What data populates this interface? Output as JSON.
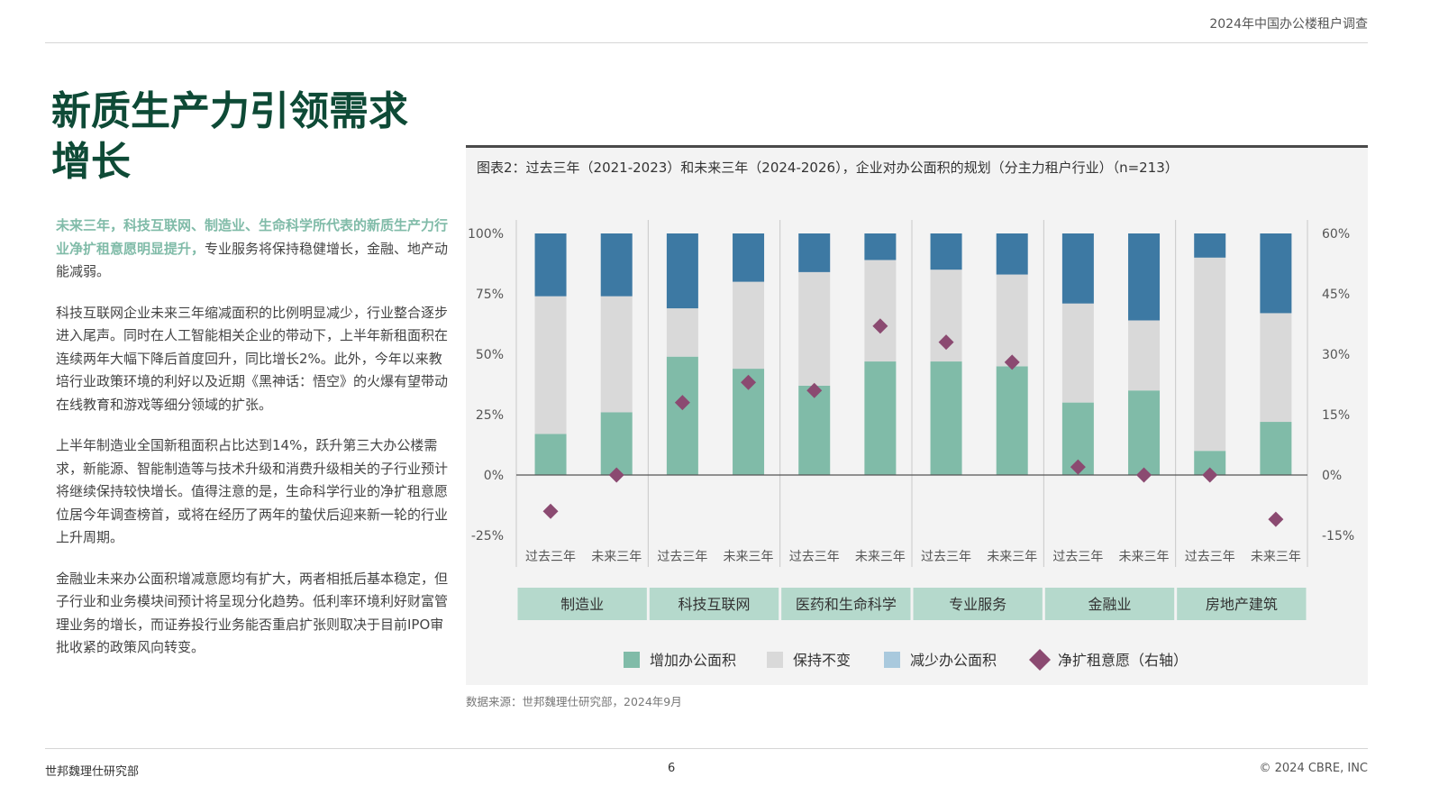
{
  "header": {
    "report_title": "2024年中国办公楼租户调查"
  },
  "page": {
    "title": "新质生产力引领需求增长",
    "page_number": "6"
  },
  "body": {
    "p1_lead": "未来三年，科技互联网、制造业、生命科学所代表的新质生产力行业净扩租意愿明显提升，",
    "p1_rest": "专业服务将保持稳健增长，金融、地产动能减弱。",
    "p2": "科技互联网企业未来三年缩减面积的比例明显减少，行业整合逐步进入尾声。同时在人工智能相关企业的带动下，上半年新租面积在连续两年大幅下降后首度回升，同比增长2%。此外，今年以来教培行业政策环境的利好以及近期《黑神话：悟空》的火爆有望带动在线教育和游戏等细分领域的扩张。",
    "p3": "上半年制造业全国新租面积占比达到14%，跃升第三大办公楼需求，新能源、智能制造等与技术升级和消费升级相关的子行业预计将继续保持较快增长。值得注意的是，生命科学行业的净扩租意愿位居今年调查榜首，或将在经历了两年的蛰伏后迎来新一轮的行业上升周期。",
    "p4": "金融业未来办公面积增减意愿均有扩大，两者相抵后基本稳定，但子行业和业务模块间预计将呈现分化趋势。低利率环境利好财富管理业务的增长，而证券投行业务能否重启扩张则取决于目前IPO审批收紧的政策风向转变。"
  },
  "chart_caption": "图表2：过去三年（2021-2023）和未来三年（2024-2026），企业对办公面积的规划（分主力租户行业）（n=213）",
  "source": "数据来源：世邦魏理仕研究部，2024年9月",
  "footer": {
    "left": "世邦魏理仕研究部",
    "right": "© 2024 CBRE, INC"
  },
  "colors": {
    "increase": "#80bba8",
    "unchanged": "#d9d9d9",
    "decrease": "#3d79a3",
    "net": "#8b4a71",
    "category_band": "#b5d9cc",
    "title_green": "#0e4a36"
  },
  "chart_data": {
    "type": "bar",
    "stacked": true,
    "left_axis": {
      "ylim": [
        -0.25,
        1.0
      ],
      "ticks": [
        -0.25,
        0,
        0.25,
        0.5,
        0.75,
        1.0
      ],
      "tick_labels": [
        "-25%",
        "0%",
        "25%",
        "50%",
        "75%",
        "100%"
      ]
    },
    "right_axis": {
      "ylim": [
        -0.15,
        0.6
      ],
      "ticks": [
        -0.15,
        0,
        0.15,
        0.3,
        0.45,
        0.6
      ],
      "tick_labels": [
        "-15%",
        "0%",
        "15%",
        "30%",
        "45%",
        "60%"
      ]
    },
    "period_labels": [
      "过去三年",
      "未来三年"
    ],
    "industries": [
      "制造业",
      "科技互联网",
      "医药和生命科学",
      "专业服务",
      "金融业",
      "房地产建筑"
    ],
    "series": [
      {
        "name": "增加办公面积",
        "values": [
          0.17,
          0.26,
          0.49,
          0.44,
          0.37,
          0.47,
          0.47,
          0.45,
          0.3,
          0.35,
          0.1,
          0.22
        ]
      },
      {
        "name": "保持不变",
        "values": [
          0.57,
          0.48,
          0.2,
          0.36,
          0.47,
          0.42,
          0.38,
          0.38,
          0.41,
          0.29,
          0.8,
          0.45
        ]
      },
      {
        "name": "减少办公面积",
        "values": [
          0.26,
          0.26,
          0.31,
          0.2,
          0.16,
          0.11,
          0.15,
          0.17,
          0.29,
          0.36,
          0.1,
          0.33
        ]
      },
      {
        "name": "净扩租意愿（右轴）",
        "axis": "right",
        "values": [
          -0.09,
          0.0,
          0.18,
          0.23,
          0.21,
          0.37,
          0.33,
          0.28,
          0.02,
          0.0,
          0.0,
          -0.11
        ]
      }
    ],
    "legend": [
      "增加办公面积",
      "保持不变",
      "减少办公面积",
      "净扩租意愿（右轴）"
    ],
    "legend_position": "bottom",
    "grid": false
  }
}
